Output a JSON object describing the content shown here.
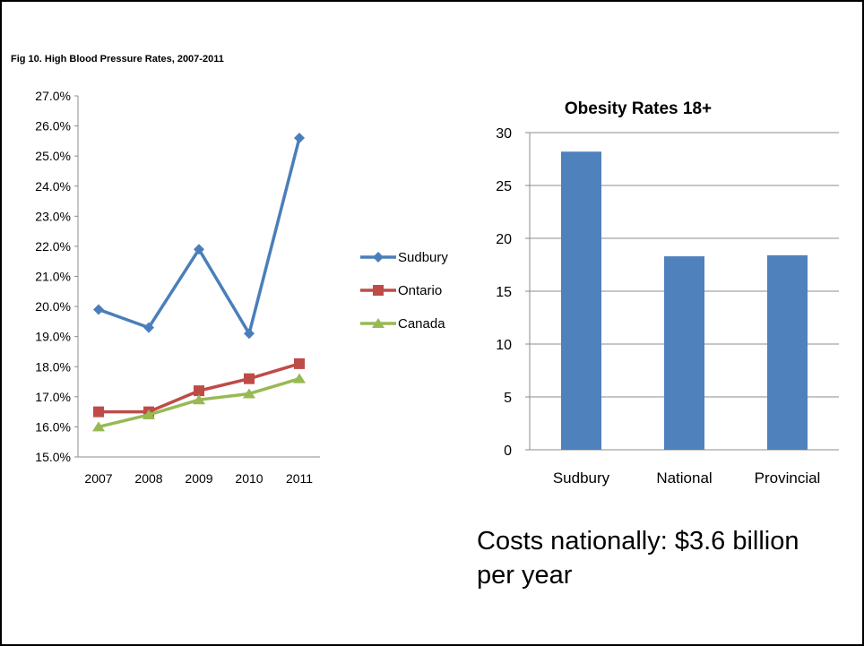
{
  "charts": {
    "line": {
      "title": "Fig 10. High Blood Pressure Rates, 2007-2011"
    },
    "bar": {
      "title": "Obesity Rates 18+"
    }
  },
  "caption": "Costs nationally: $3.6 billion per year",
  "chart_data": [
    {
      "type": "line",
      "title": "Fig 10. High Blood Pressure Rates, 2007-2011",
      "x": [
        "2007",
        "2008",
        "2009",
        "2010",
        "2011"
      ],
      "ylim": [
        15.0,
        27.0
      ],
      "yticks": [
        "15.0%",
        "16.0%",
        "17.0%",
        "18.0%",
        "19.0%",
        "20.0%",
        "21.0%",
        "22.0%",
        "23.0%",
        "24.0%",
        "25.0%",
        "26.0%",
        "27.0%"
      ],
      "grid": false,
      "legend": "right",
      "series": [
        {
          "name": "Sudbury",
          "values": [
            19.9,
            19.3,
            21.9,
            19.1,
            25.6
          ],
          "color": "#4a7ebb",
          "marker": "diamond"
        },
        {
          "name": "Ontario",
          "values": [
            16.5,
            16.5,
            17.2,
            17.6,
            18.1
          ],
          "color": "#be4b48",
          "marker": "square"
        },
        {
          "name": "Canada",
          "values": [
            16.0,
            16.4,
            16.9,
            17.1,
            17.6
          ],
          "color": "#98b954",
          "marker": "triangle"
        }
      ]
    },
    {
      "type": "bar",
      "title": "Obesity Rates 18+",
      "categories": [
        "Sudbury",
        "National",
        "Provincial"
      ],
      "values": [
        28.2,
        18.3,
        18.4
      ],
      "ylim": [
        0,
        30
      ],
      "yticks": [
        "0",
        "5",
        "10",
        "15",
        "20",
        "25",
        "30"
      ],
      "grid": true,
      "color": "#4f81bd"
    }
  ]
}
